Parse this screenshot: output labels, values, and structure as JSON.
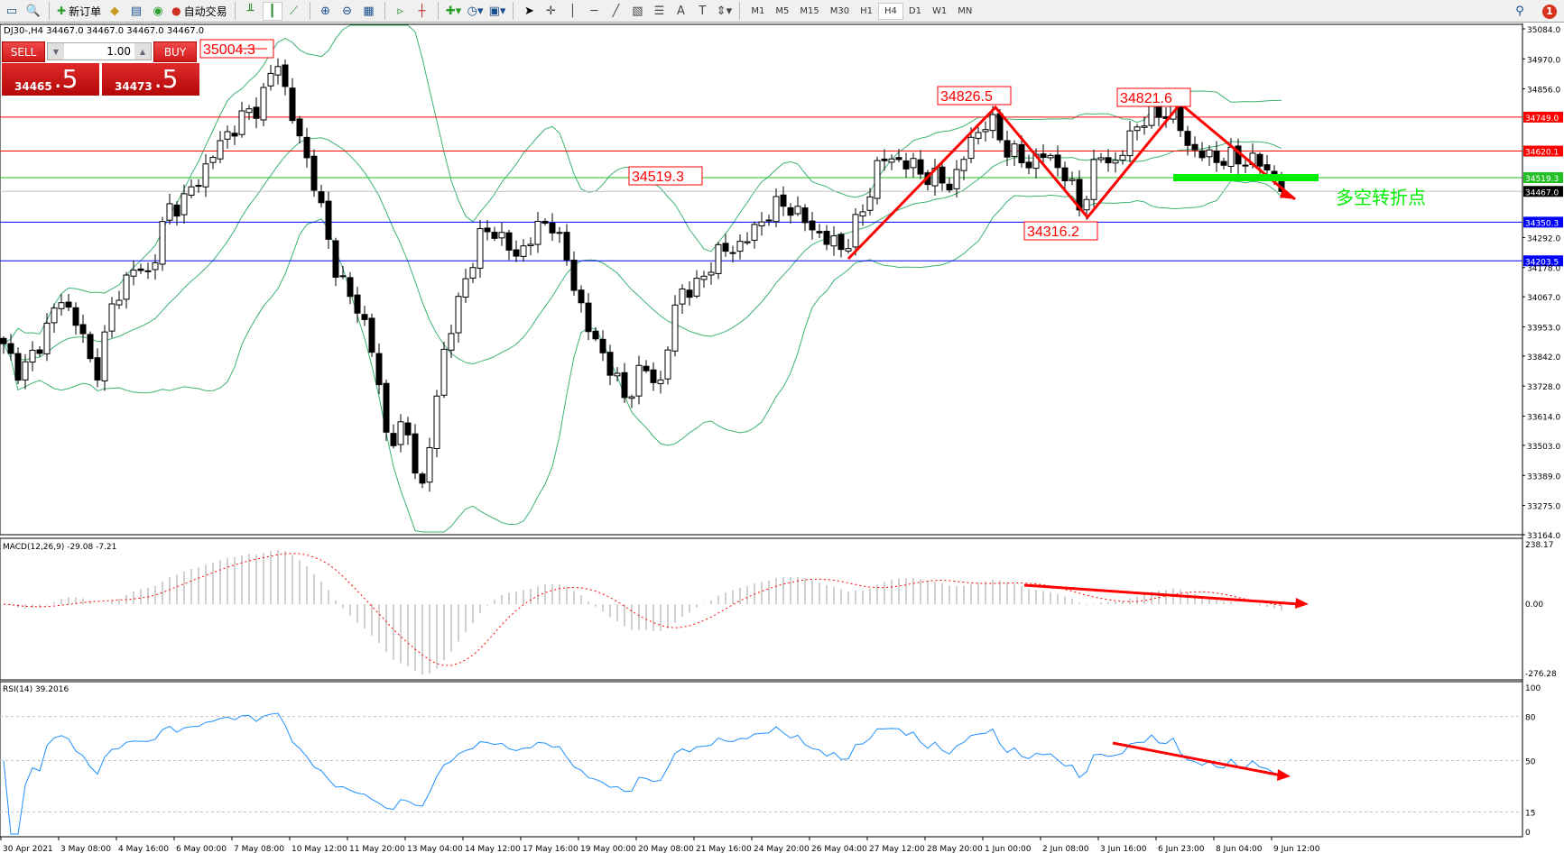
{
  "toolbar": {
    "new_order": "新订单",
    "auto_trading": "自动交易",
    "timeframes": [
      "M1",
      "M5",
      "M15",
      "M30",
      "H1",
      "H4",
      "D1",
      "W1",
      "MN"
    ],
    "active_timeframe": "H4",
    "notifications": "1"
  },
  "chart_info": "DJ30-,H4  34467.0 34467.0 34467.0 34467.0",
  "one_click": {
    "sell": "SELL",
    "buy": "BUY",
    "lot": "1.00",
    "sell_price_main": "34465",
    "sell_price_big": ".5",
    "buy_price_main": "34473",
    "buy_price_big": ".5"
  },
  "colors": {
    "up_candle": "#ffffff",
    "down_candle": "#000000",
    "bands": "#3cb371",
    "resistance": "#ff0000",
    "support": "#0000ff",
    "pivot": "#00c000",
    "rsi": "#1e90ff",
    "macd_signal": "#ff0000",
    "macd_hist": "#c0c0c0",
    "annotation": "#ff0000",
    "pivot_text": "#00ee00"
  },
  "chart_data": {
    "type": "candlestick",
    "symbol": "DJ30-",
    "timeframe": "H4",
    "price_axis": {
      "ticks": [
        "35084.0",
        "34970.0",
        "34856.0",
        "34292.0",
        "34178.0",
        "34067.0",
        "33953.0",
        "33842.0",
        "33728.0",
        "33614.0",
        "33503.0",
        "33389.0",
        "33275.0",
        "33164.0"
      ],
      "range": [
        33164.0,
        35084.0
      ]
    },
    "close_path": [
      33871,
      33776,
      33890,
      34060,
      33984,
      33757,
      34041,
      34173,
      34154,
      34400,
      34438,
      34551,
      34665,
      34740,
      34797,
      34967,
      34702,
      34513,
      34211,
      34060,
      33946,
      33530,
      33568,
      33323,
      33833,
      34060,
      34287,
      34325,
      34211,
      34306,
      34362,
      34173,
      33946,
      33833,
      33682,
      33795,
      33738,
      34098,
      34098,
      34230,
      34249,
      34306,
      34400,
      34419,
      34344,
      34287,
      34249,
      34381,
      34589,
      34589,
      34551,
      34513,
      34494,
      34665,
      34740,
      34627,
      34570,
      34608,
      34551,
      34400,
      34608,
      34570,
      34721,
      34759,
      34778,
      34627,
      34597,
      34589,
      34589,
      34570,
      34467
    ],
    "x_labels": [
      "30 Apr 2021",
      "3 May 08:00",
      "4 May 16:00",
      "6 May 00:00",
      "7 May 08:00",
      "10 May 12:00",
      "11 May 20:00",
      "13 May 04:00",
      "14 May 12:00",
      "17 May 16:00",
      "19 May 00:00",
      "20 May 08:00",
      "21 May 16:00",
      "24 May 20:00",
      "26 May 04:00",
      "27 May 12:00",
      "28 May 20:00",
      "1 Jun 00:00",
      "2 Jun 08:00",
      "3 Jun 16:00",
      "6 Jun 23:00",
      "8 Jun 04:00",
      "9 Jun 12:00"
    ],
    "indicators": {
      "bollinger": "Bollinger Bands (green)",
      "macd": {
        "label": "MACD(12,26,9) -29.08 -7.21",
        "range": [
          -276.28,
          238.17
        ],
        "ticks": [
          "238.17",
          "0.00",
          "-276.28"
        ]
      },
      "rsi": {
        "label": "RSI(14) 39.2016",
        "ticks": [
          "100",
          "80",
          "50",
          "15",
          "0"
        ],
        "levels": [
          80,
          50,
          15
        ]
      }
    },
    "horizontal_lines": [
      {
        "price": 34749.0,
        "label": "34749.0",
        "color": "#ff0000",
        "text_color": "#ffffff"
      },
      {
        "price": 34620.1,
        "label": "34620.1",
        "color": "#ff0000",
        "text_color": "#ffffff"
      },
      {
        "price": 34519.3,
        "label": "34519.3",
        "color": "#22c022",
        "text_color": "#ffffff"
      },
      {
        "price": 34467.0,
        "label": "34467.0",
        "color": "#c0c0c0",
        "bg": "#000000",
        "text_color": "#ffffff"
      },
      {
        "price": 34350.3,
        "label": "34350.3",
        "color": "#0000ff",
        "text_color": "#ffffff"
      },
      {
        "price": 34203.5,
        "label": "34203.5",
        "color": "#0000ff",
        "text_color": "#ffffff"
      }
    ],
    "price_labels": [
      "35004.3",
      "34826.5",
      "34821.6",
      "34519.3",
      "34316.2"
    ],
    "pivot_text": "多空转折点"
  }
}
